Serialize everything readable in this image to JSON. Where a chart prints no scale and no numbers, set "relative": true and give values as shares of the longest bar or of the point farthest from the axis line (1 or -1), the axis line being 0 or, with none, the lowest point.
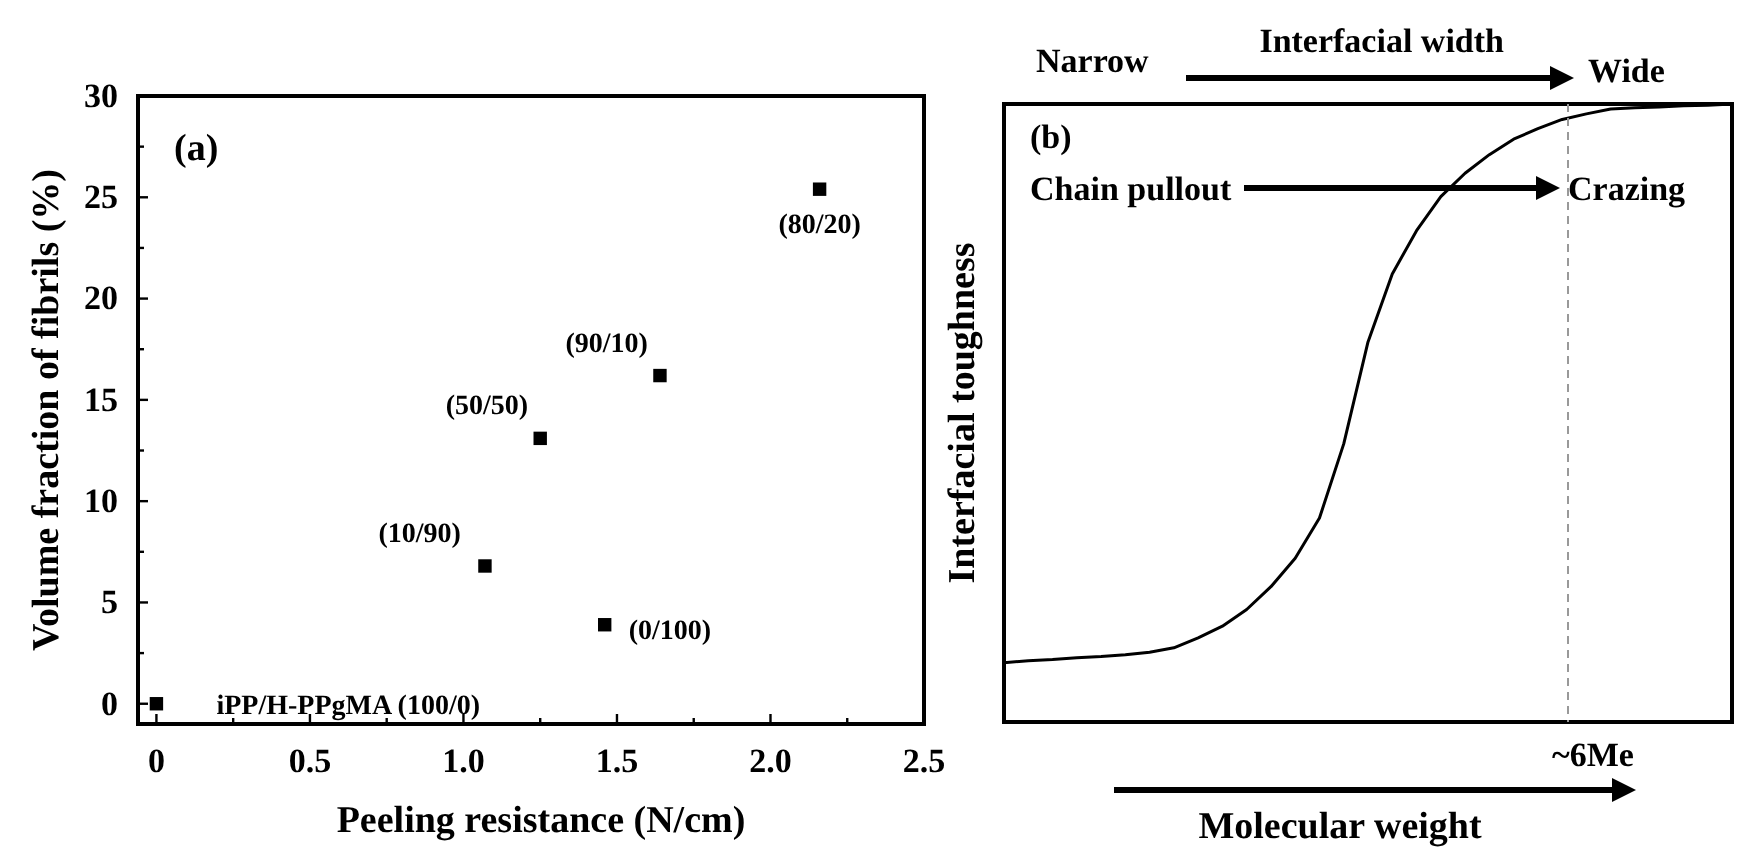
{
  "chart_data": [
    {
      "type": "scatter",
      "xlabel": "Peeling resistance (N/cm)",
      "ylabel": "Volume fraction of fibrils (%)",
      "x": [
        0,
        1.07,
        1.25,
        1.46,
        1.64,
        2.16
      ],
      "series": [
        {
          "color": "#000000",
          "values": [
            0,
            6.8,
            13.1,
            3.9,
            16.2,
            25.4
          ]
        }
      ],
      "marker": "square",
      "xlim": [
        -0.06,
        2.5
      ],
      "ylim": [
        -1,
        30
      ],
      "xticks": [
        0,
        {
          "value": 0.25,
          "label": null
        },
        0.5,
        {
          "value": 0.75,
          "label": null
        },
        {
          "value": 1,
          "label": "1.0"
        },
        {
          "value": 1.25,
          "label": null
        },
        1.5,
        {
          "value": 1.75,
          "label": null
        },
        {
          "value": 2,
          "label": "2.0"
        },
        {
          "value": 2.25,
          "label": null
        },
        2.5
      ],
      "yticks": [
        0,
        {
          "value": 2.5,
          "label": null
        },
        5,
        {
          "value": 7.5,
          "label": null
        },
        10,
        {
          "value": 12.5,
          "label": null
        },
        15,
        {
          "value": 17.5,
          "label": null
        },
        20,
        {
          "value": 22.5,
          "label": null
        },
        25,
        {
          "value": 27.5,
          "label": null
        },
        30
      ],
      "annotations": [
        "(a)",
        {
          "text": "iPP/H-PPgMA (100/0)",
          "x": 0,
          "y": 0
        },
        {
          "text": "(10/90)",
          "x": 1.07,
          "y": 6.8
        },
        {
          "text": "(50/50)",
          "x": 1.25,
          "y": 13.1
        },
        {
          "text": "(0/100)",
          "x": 1.46,
          "y": 3.9
        },
        {
          "text": "(90/10)",
          "x": 1.64,
          "y": 16.2
        },
        {
          "text": "(80/20)",
          "x": 2.16,
          "y": 25.4
        }
      ]
    },
    {
      "type": "line",
      "relative": true,
      "xlabel": "Molecular weight",
      "ylabel": "Interfacial toughness",
      "categories": [
        null,
        null,
        null,
        null,
        null,
        null,
        null,
        null,
        null,
        null,
        null,
        null,
        null,
        null,
        null,
        null,
        null,
        null,
        null,
        null,
        null,
        null,
        null,
        null,
        null,
        null,
        null,
        null,
        null,
        null,
        null
      ],
      "series": [
        {
          "color": "#000000",
          "values": [
            0.096,
            0.099,
            0.101,
            0.104,
            0.106,
            0.109,
            0.113,
            0.12,
            0.136,
            0.155,
            0.182,
            0.219,
            0.265,
            0.33,
            0.45,
            0.615,
            0.725,
            0.795,
            0.85,
            0.888,
            0.918,
            0.943,
            0.96,
            0.975,
            0.984,
            0.992,
            0.994,
            0.995,
            0.997,
            0.998,
            1
          ]
        }
      ],
      "line_style": "solid",
      "annotations": [
        "(b)",
        "Chain pullout",
        "Crazing",
        "Narrow",
        "Interfacial width",
        "Wide",
        "~6Me"
      ]
    }
  ]
}
